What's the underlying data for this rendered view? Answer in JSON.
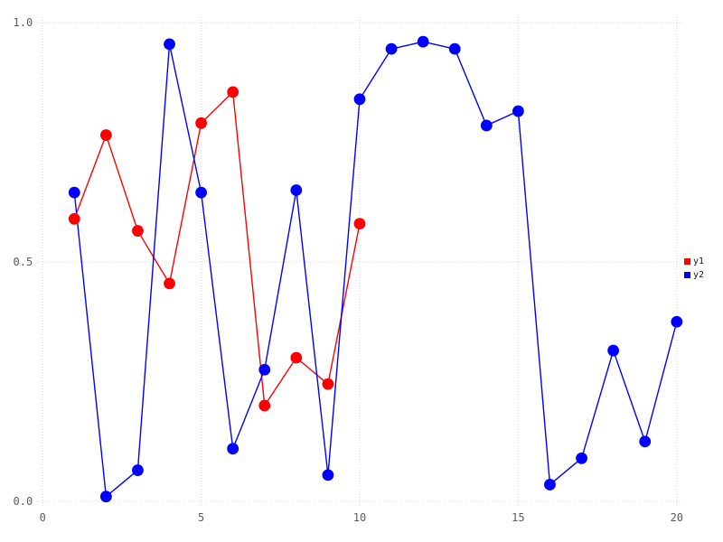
{
  "chart_data": {
    "type": "line",
    "title": "",
    "xlabel": "",
    "ylabel": "",
    "xlim": [
      0,
      20
    ],
    "ylim": [
      0,
      1
    ],
    "grid": true,
    "grid_style": "dotted",
    "legend_position": "right-outside",
    "xticks": [
      0,
      5,
      10,
      15,
      20
    ],
    "xtick_labels": [
      "0",
      "5",
      "10",
      "15",
      "20"
    ],
    "yticks": [
      0,
      0.5,
      1
    ],
    "ytick_labels": [
      "0.0",
      "0.5",
      "1.0"
    ],
    "colors": {
      "background": "#ffffff",
      "grid": "#d8d8e2",
      "tick_text": "#5a5a64"
    },
    "series": [
      {
        "name": "y1",
        "color": "#ff0000",
        "x": [
          1,
          2,
          3,
          4,
          5,
          6,
          7,
          8,
          9,
          10
        ],
        "y": [
          0.59,
          0.765,
          0.565,
          0.455,
          0.79,
          0.855,
          0.2,
          0.3,
          0.245,
          0.58
        ]
      },
      {
        "name": "y2",
        "color": "#0000ff",
        "x": [
          1,
          2,
          3,
          4,
          5,
          6,
          7,
          8,
          9,
          10,
          11,
          12,
          13,
          14,
          15,
          16,
          17,
          18,
          19,
          20
        ],
        "y": [
          0.645,
          0.01,
          0.065,
          0.955,
          0.645,
          0.11,
          0.275,
          0.65,
          0.055,
          0.84,
          0.945,
          0.96,
          0.945,
          0.785,
          0.815,
          0.035,
          0.09,
          0.315,
          0.125,
          0.375
        ]
      }
    ]
  }
}
